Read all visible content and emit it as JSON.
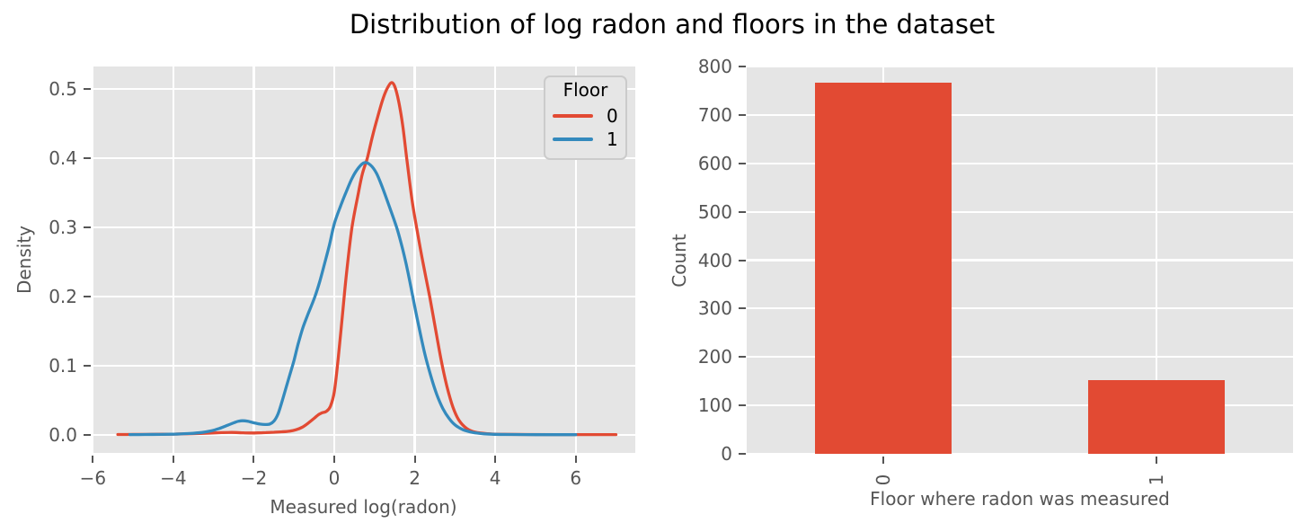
{
  "figure": {
    "title": "Distribution of log radon and floors in the dataset",
    "background": "#FFFFFF"
  },
  "palette": {
    "red": "#E24A33",
    "blue": "#348ABD",
    "panel_bg": "#E5E5E5",
    "grid": "#FFFFFF",
    "tick_text": "#555555",
    "title_text": "#000000",
    "legend_bg": "#E6E6E6",
    "legend_border": "#CBCBCB"
  },
  "chart_data": [
    {
      "type": "line",
      "name": "kde-density-by-floor",
      "title": "",
      "xlabel": "Measured log(radon)",
      "ylabel": "Density",
      "xlim": [
        -6.03,
        7.48
      ],
      "ylim": [
        -0.026,
        0.5325
      ],
      "xticks": [
        -6,
        -4,
        -2,
        0,
        2,
        4,
        6
      ],
      "xtick_labels": [
        "−6",
        "−4",
        "−2",
        "0",
        "2",
        "4",
        "6"
      ],
      "yticks": [
        0.0,
        0.1,
        0.2,
        0.3,
        0.4,
        0.5
      ],
      "ytick_labels": [
        "0.0",
        "0.1",
        "0.2",
        "0.3",
        "0.4",
        "0.5"
      ],
      "grid": true,
      "legend": {
        "title": "Floor",
        "position": "upper right",
        "entries": [
          {
            "label": "0",
            "color": "#E24A33"
          },
          {
            "label": "1",
            "color": "#348ABD"
          }
        ]
      },
      "series": [
        {
          "name": "floor-0",
          "label": "0",
          "color": "#E24A33",
          "peak": {
            "x": 1.41,
            "density": 0.509
          },
          "points": [
            [
              -5.38,
              0.0006
            ],
            [
              -5.0,
              0.0007
            ],
            [
              -4.5,
              0.0009
            ],
            [
              -4.0,
              0.0012
            ],
            [
              -3.5,
              0.0018
            ],
            [
              -3.1,
              0.0026
            ],
            [
              -2.8,
              0.0033
            ],
            [
              -2.55,
              0.0036
            ],
            [
              -2.3,
              0.0031
            ],
            [
              -2.1,
              0.0028
            ],
            [
              -1.9,
              0.0029
            ],
            [
              -1.7,
              0.0034
            ],
            [
              -1.5,
              0.0039
            ],
            [
              -1.3,
              0.0045
            ],
            [
              -1.1,
              0.0055
            ],
            [
              -0.95,
              0.0075
            ],
            [
              -0.8,
              0.011
            ],
            [
              -0.65,
              0.017
            ],
            [
              -0.5,
              0.024
            ],
            [
              -0.4,
              0.029
            ],
            [
              -0.3,
              0.032
            ],
            [
              -0.2,
              0.034
            ],
            [
              -0.1,
              0.041
            ],
            [
              0.0,
              0.062
            ],
            [
              0.1,
              0.112
            ],
            [
              0.2,
              0.172
            ],
            [
              0.3,
              0.232
            ],
            [
              0.44,
              0.3
            ],
            [
              0.6,
              0.35
            ],
            [
              0.7,
              0.378
            ],
            [
              0.82,
              0.4
            ],
            [
              0.95,
              0.432
            ],
            [
              1.08,
              0.46
            ],
            [
              1.2,
              0.484
            ],
            [
              1.3,
              0.499
            ],
            [
              1.41,
              0.509
            ],
            [
              1.5,
              0.504
            ],
            [
              1.6,
              0.482
            ],
            [
              1.7,
              0.447
            ],
            [
              1.8,
              0.4
            ],
            [
              1.93,
              0.34
            ],
            [
              2.06,
              0.295
            ],
            [
              2.2,
              0.25
            ],
            [
              2.37,
              0.2
            ],
            [
              2.5,
              0.158
            ],
            [
              2.65,
              0.11
            ],
            [
              2.8,
              0.07
            ],
            [
              2.95,
              0.04
            ],
            [
              3.1,
              0.021
            ],
            [
              3.3,
              0.009
            ],
            [
              3.5,
              0.004
            ],
            [
              3.8,
              0.0018
            ],
            [
              4.2,
              0.0009
            ],
            [
              4.8,
              0.0006
            ],
            [
              5.5,
              0.0005
            ],
            [
              6.3,
              0.0005
            ],
            [
              7.0,
              0.0005
            ]
          ]
        },
        {
          "name": "floor-1",
          "label": "1",
          "color": "#348ABD",
          "peak": {
            "x": 0.75,
            "density": 0.3935
          },
          "points": [
            [
              -5.08,
              0.0005
            ],
            [
              -4.7,
              0.0006
            ],
            [
              -4.3,
              0.0008
            ],
            [
              -3.95,
              0.0012
            ],
            [
              -3.6,
              0.002
            ],
            [
              -3.3,
              0.0035
            ],
            [
              -3.05,
              0.006
            ],
            [
              -2.85,
              0.0095
            ],
            [
              -2.65,
              0.014
            ],
            [
              -2.5,
              0.0175
            ],
            [
              -2.38,
              0.0198
            ],
            [
              -2.28,
              0.0205
            ],
            [
              -2.15,
              0.0197
            ],
            [
              -2.0,
              0.0175
            ],
            [
              -1.85,
              0.0157
            ],
            [
              -1.72,
              0.015
            ],
            [
              -1.6,
              0.0158
            ],
            [
              -1.5,
              0.02
            ],
            [
              -1.4,
              0.03
            ],
            [
              -1.3,
              0.048
            ],
            [
              -1.2,
              0.068
            ],
            [
              -1.1,
              0.088
            ],
            [
              -1.0,
              0.108
            ],
            [
              -0.9,
              0.131
            ],
            [
              -0.78,
              0.155
            ],
            [
              -0.65,
              0.175
            ],
            [
              -0.48,
              0.2
            ],
            [
              -0.36,
              0.222
            ],
            [
              -0.24,
              0.248
            ],
            [
              -0.12,
              0.275
            ],
            [
              0.0,
              0.305
            ],
            [
              0.15,
              0.33
            ],
            [
              0.3,
              0.352
            ],
            [
              0.45,
              0.372
            ],
            [
              0.6,
              0.386
            ],
            [
              0.75,
              0.3935
            ],
            [
              0.9,
              0.39
            ],
            [
              1.05,
              0.378
            ],
            [
              1.2,
              0.357
            ],
            [
              1.35,
              0.333
            ],
            [
              1.56,
              0.298
            ],
            [
              1.7,
              0.268
            ],
            [
              1.82,
              0.238
            ],
            [
              1.95,
              0.2
            ],
            [
              2.1,
              0.157
            ],
            [
              2.25,
              0.117
            ],
            [
              2.4,
              0.085
            ],
            [
              2.55,
              0.058
            ],
            [
              2.7,
              0.038
            ],
            [
              2.85,
              0.024
            ],
            [
              3.0,
              0.0145
            ],
            [
              3.2,
              0.0075
            ],
            [
              3.45,
              0.0035
            ],
            [
              3.7,
              0.0017
            ],
            [
              4.0,
              0.0009
            ],
            [
              4.4,
              0.0006
            ],
            [
              5.0,
              0.0004
            ],
            [
              5.5,
              0.0004
            ],
            [
              6.0,
              0.0004
            ]
          ]
        }
      ]
    },
    {
      "type": "bar",
      "name": "floor-counts",
      "title": "",
      "xlabel": "Floor where radon was measured",
      "ylabel": "Count",
      "categories": [
        "0",
        "1"
      ],
      "values": [
        766,
        153
      ],
      "bar_color": "#E24A33",
      "bar_width": 0.5,
      "xlim": [
        -0.5,
        1.5
      ],
      "ylim": [
        0,
        800
      ],
      "xticks": [
        0,
        1
      ],
      "xtick_labels": [
        "0",
        "1"
      ],
      "xtick_rotation": 90,
      "yticks": [
        0,
        100,
        200,
        300,
        400,
        500,
        600,
        700,
        800
      ],
      "ytick_labels": [
        "0",
        "100",
        "200",
        "300",
        "400",
        "500",
        "600",
        "700",
        "800"
      ],
      "grid": true
    }
  ]
}
